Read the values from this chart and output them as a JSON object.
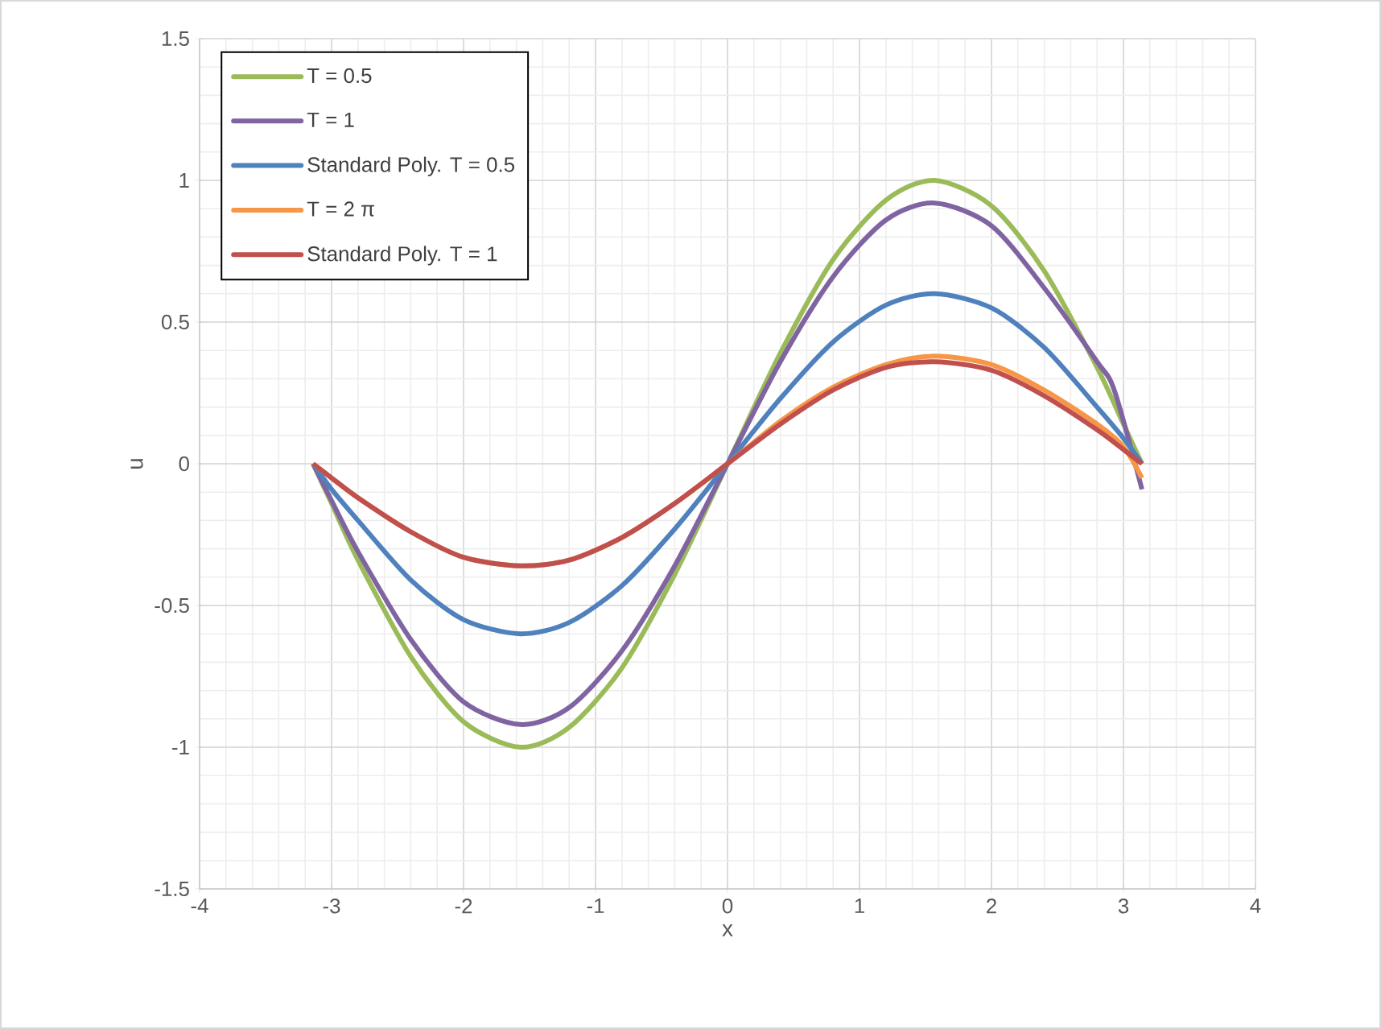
{
  "chart_data": {
    "type": "line",
    "xlabel": "x",
    "ylabel": "u",
    "xlim": [
      -4,
      4
    ],
    "ylim": [
      -1.5,
      1.5
    ],
    "xticks": [
      -4,
      -3,
      -2,
      -1,
      0,
      1,
      2,
      3,
      4
    ],
    "yticks": [
      -1.5,
      -1,
      -0.5,
      0,
      0.5,
      1,
      1.5
    ],
    "grid": true,
    "legend": "top left",
    "marker": "none",
    "line_style": "solid",
    "series": [
      {
        "name": "T = 0.5",
        "color": "#9bbb59",
        "x": [
          -3.14,
          -3.0,
          -2.8,
          -2.4,
          -2.0,
          -1.57,
          -1.2,
          -0.8,
          -0.4,
          0,
          0.4,
          0.8,
          1.2,
          1.57,
          2.0,
          2.4,
          2.8,
          3.0,
          3.14
        ],
        "values": [
          0,
          -0.14,
          -0.34,
          -0.68,
          -0.91,
          -1.0,
          -0.93,
          -0.72,
          -0.39,
          0,
          0.39,
          0.72,
          0.93,
          1.0,
          0.91,
          0.68,
          0.34,
          0.14,
          0
        ]
      },
      {
        "name": "T = 1",
        "color": "#8064a2",
        "x": [
          -3.14,
          -3.0,
          -2.8,
          -2.4,
          -2.0,
          -1.57,
          -1.2,
          -0.8,
          -0.4,
          0,
          0.4,
          0.8,
          1.2,
          1.57,
          2.0,
          2.4,
          2.8,
          2.93,
          3.14
        ],
        "values": [
          0,
          -0.13,
          -0.31,
          -0.62,
          -0.84,
          -0.92,
          -0.86,
          -0.66,
          -0.36,
          0,
          0.36,
          0.66,
          0.86,
          0.92,
          0.84,
          0.62,
          0.36,
          0.26,
          -0.09
        ]
      },
      {
        "name": "Standard Poly. T = 0.5",
        "color": "#4f81bd",
        "x": [
          -3.14,
          -3.0,
          -2.8,
          -2.4,
          -2.0,
          -1.57,
          -1.2,
          -0.8,
          -0.4,
          0,
          0.4,
          0.8,
          1.2,
          1.57,
          2.0,
          2.4,
          2.8,
          3.0,
          3.14
        ],
        "values": [
          0,
          -0.09,
          -0.2,
          -0.41,
          -0.55,
          -0.6,
          -0.56,
          -0.43,
          -0.23,
          0,
          0.23,
          0.43,
          0.56,
          0.6,
          0.55,
          0.41,
          0.2,
          0.09,
          0
        ]
      },
      {
        "name": "T = 2 π",
        "color": "#f79646",
        "x": [
          -3.14,
          -3.0,
          -2.8,
          -2.4,
          -2.0,
          -1.57,
          -1.2,
          -0.8,
          -0.4,
          0,
          0.4,
          0.8,
          1.2,
          1.57,
          2.0,
          2.4,
          2.8,
          3.0,
          3.14
        ],
        "values": [
          0,
          -0.05,
          -0.12,
          -0.24,
          -0.33,
          -0.36,
          -0.34,
          -0.26,
          -0.14,
          0,
          0.15,
          0.27,
          0.35,
          0.38,
          0.35,
          0.26,
          0.14,
          0.06,
          -0.05
        ]
      },
      {
        "name": "Standard Poly. T = 1",
        "color": "#c0504d",
        "x": [
          -3.14,
          -3.0,
          -2.8,
          -2.4,
          -2.0,
          -1.57,
          -1.2,
          -0.8,
          -0.4,
          0,
          0.4,
          0.8,
          1.2,
          1.57,
          2.0,
          2.4,
          2.8,
          3.0,
          3.14
        ],
        "values": [
          0,
          -0.05,
          -0.12,
          -0.24,
          -0.33,
          -0.36,
          -0.34,
          -0.26,
          -0.14,
          0,
          0.14,
          0.26,
          0.34,
          0.36,
          0.33,
          0.24,
          0.12,
          0.05,
          0
        ]
      }
    ]
  }
}
